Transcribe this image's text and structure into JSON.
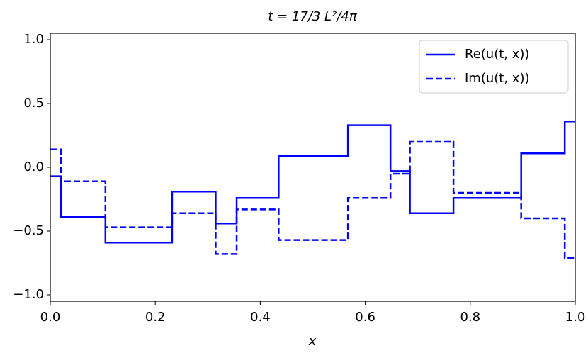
{
  "chart_data": {
    "type": "line",
    "title": "t = 17/3 L²/4π",
    "xlabel": "x",
    "x": [
      0,
      0.02,
      0.02,
      0.105,
      0.105,
      0.232,
      0.232,
      0.315,
      0.315,
      0.355,
      0.355,
      0.435,
      0.435,
      0.567,
      0.567,
      0.648,
      0.648,
      0.685,
      0.685,
      0.768,
      0.768,
      0.897,
      0.897,
      0.98,
      0.98,
      1.0
    ],
    "series": [
      {
        "name": "Re(u(t, x))",
        "color": "#0000ff",
        "linestyle": "solid",
        "values": [
          -0.07,
          -0.07,
          -0.39,
          -0.39,
          -0.59,
          -0.59,
          -0.19,
          -0.19,
          -0.44,
          -0.44,
          -0.24,
          -0.24,
          0.09,
          0.09,
          0.33,
          0.33,
          -0.03,
          -0.03,
          -0.36,
          -0.36,
          -0.24,
          -0.24,
          0.11,
          0.11,
          0.36,
          0.36
        ]
      },
      {
        "name": "Im(u(t, x))",
        "color": "#0000ff",
        "linestyle": "dashed",
        "values": [
          0.14,
          0.14,
          -0.11,
          -0.11,
          -0.47,
          -0.47,
          -0.36,
          -0.36,
          -0.68,
          -0.68,
          -0.33,
          -0.33,
          -0.57,
          -0.57,
          -0.24,
          -0.24,
          -0.05,
          -0.05,
          0.2,
          0.2,
          -0.2,
          -0.2,
          -0.4,
          -0.4,
          -0.71,
          -0.71
        ]
      }
    ],
    "xlim": [
      0,
      1
    ],
    "ylim": [
      -1.05,
      1.05
    ],
    "xticks": [
      {
        "value": 0,
        "label": "0.0"
      },
      0.2,
      0.4,
      0.6,
      0.8,
      {
        "value": 1,
        "label": "1.0"
      }
    ],
    "yticks": [
      {
        "value": -1,
        "label": "−1.0"
      },
      {
        "value": -0.5,
        "label": "−0.5"
      },
      {
        "value": 0,
        "label": "0.0"
      },
      {
        "value": 0.5,
        "label": "0.5"
      },
      {
        "value": 1,
        "label": "1.0"
      }
    ],
    "legend": "upper right",
    "grid": false
  }
}
